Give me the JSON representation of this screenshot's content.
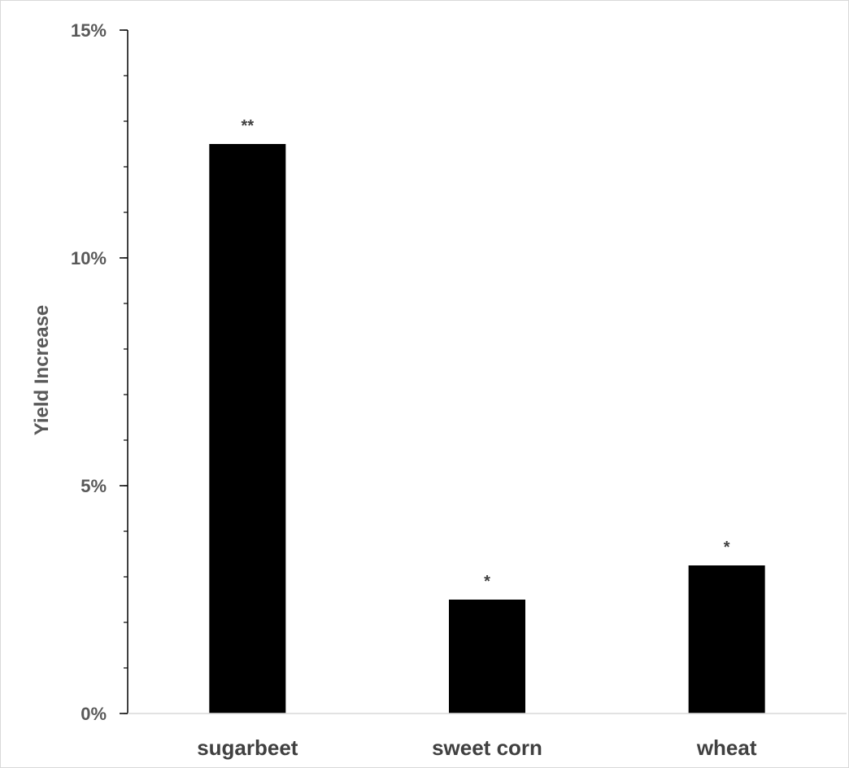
{
  "chart_data": {
    "type": "bar",
    "title": "",
    "xlabel": "",
    "ylabel": "Yield Increase",
    "categories": [
      "sugarbeet",
      "sweet corn",
      "wheat"
    ],
    "values": [
      0.125,
      0.025,
      0.0325
    ],
    "significance": [
      "**",
      "*",
      "*"
    ],
    "ylim": [
      0,
      0.15
    ],
    "yticks": [
      0,
      0.05,
      0.1,
      0.15
    ],
    "ytick_labels": [
      "0%",
      "5%",
      "10%",
      "15%"
    ],
    "minor_ytick_step": 0.01,
    "grid": false,
    "legend": "none",
    "colors": {
      "bar": "#000000",
      "axis": "#000000",
      "tick_text": "#595959",
      "category_text": "#404040"
    }
  }
}
